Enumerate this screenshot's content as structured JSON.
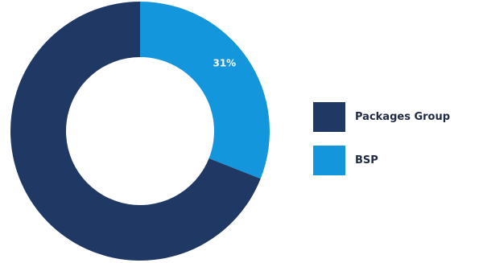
{
  "chart_data": {
    "type": "pie",
    "donut": true,
    "categories": [
      "Packages Group",
      "BSP"
    ],
    "values": [
      69,
      31
    ],
    "colors": [
      "#203864",
      "#1496dc"
    ],
    "data_labels": [
      "",
      "31%"
    ],
    "legend_position": "right"
  },
  "legend": {
    "items": [
      {
        "label": "Packages Group",
        "color": "#203864"
      },
      {
        "label": "BSP",
        "color": "#1496dc"
      }
    ]
  }
}
